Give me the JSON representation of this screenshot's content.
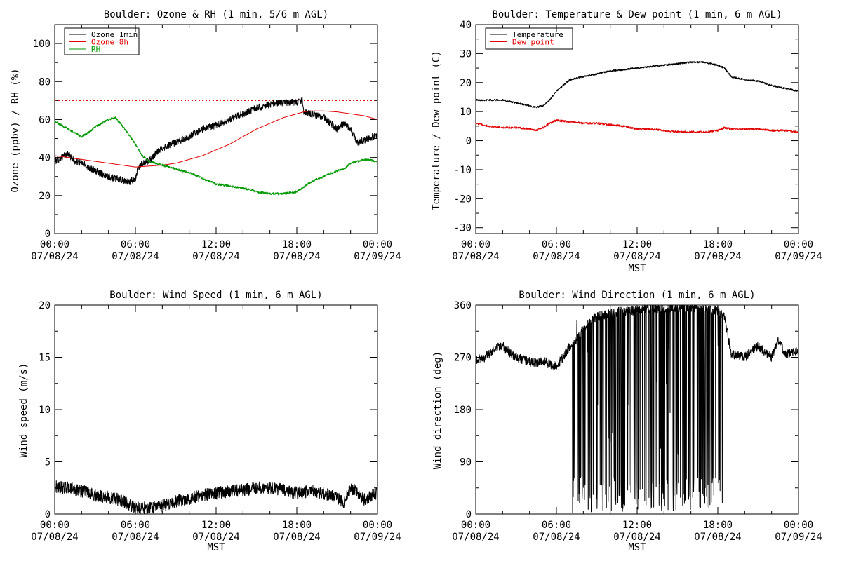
{
  "chart_data": [
    {
      "type": "line",
      "title": "Boulder: Ozone & RH (1 min, 5/6 m AGL)",
      "xlabel": "",
      "ylabel": "Ozone (ppbv) / RH (%)",
      "xlim": [
        0,
        24
      ],
      "ylim": [
        0,
        110
      ],
      "yticks": [
        0,
        20,
        40,
        60,
        80,
        100
      ],
      "xticks": [
        {
          "value": 0,
          "time": "00:00",
          "date": "07/08/24"
        },
        {
          "value": 6,
          "time": "06:00",
          "date": "07/08/24"
        },
        {
          "value": 12,
          "time": "12:00",
          "date": "07/08/24"
        },
        {
          "value": 18,
          "time": "18:00",
          "date": "07/08/24"
        },
        {
          "value": 24,
          "time": "00:00",
          "date": "07/09/24"
        }
      ],
      "legend_position": "top-left",
      "reference_line": {
        "y": 70,
        "color": "#e00000",
        "style": "dotted"
      },
      "series": [
        {
          "name": "Ozone 1min",
          "color": "#000000",
          "noise": 1.8,
          "x": [
            0,
            0.5,
            1,
            1.5,
            2,
            3,
            4,
            4.5,
            5,
            5.5,
            6,
            6.2,
            6.5,
            7,
            7.5,
            8,
            9,
            10,
            11,
            12,
            13,
            14,
            15,
            16,
            17,
            18,
            18.4,
            18.5,
            19,
            20,
            20.5,
            21,
            21.5,
            22,
            22.5,
            23,
            24
          ],
          "y": [
            38,
            40,
            42,
            38,
            37,
            33,
            30,
            29,
            28,
            27,
            29,
            34,
            37,
            38,
            42,
            45,
            48,
            51,
            55,
            57,
            60,
            63,
            66,
            68,
            69,
            69,
            70,
            64,
            63,
            61,
            58,
            55,
            58,
            55,
            48,
            49,
            52
          ]
        },
        {
          "name": "Ozone 8h",
          "color": "#e00000",
          "noise": 0,
          "x": [
            0,
            2,
            4,
            6,
            8,
            9,
            10,
            11,
            12,
            13,
            14,
            15,
            16,
            17,
            18,
            18.5,
            19,
            20,
            21,
            22,
            23,
            24
          ],
          "y": [
            41,
            39,
            37,
            35,
            36,
            37,
            39,
            41,
            44,
            47,
            51,
            55,
            58,
            61,
            63,
            64,
            64.5,
            64.5,
            64,
            63,
            62,
            60
          ]
        },
        {
          "name": "RH",
          "color": "#009900",
          "noise": 0.6,
          "x": [
            0,
            0.5,
            1,
            1.5,
            2,
            2.5,
            3,
            4,
            4.5,
            5,
            5.5,
            6,
            6.5,
            7,
            7.5,
            8,
            9,
            10,
            11,
            12,
            13,
            14,
            15,
            16,
            17,
            18,
            19,
            20,
            21,
            21.5,
            22,
            22.5,
            23,
            24
          ],
          "y": [
            59,
            57,
            55,
            53,
            51,
            53,
            56,
            60,
            61,
            57,
            52,
            47,
            41,
            38,
            37,
            36,
            34,
            32,
            29,
            26,
            25,
            24,
            22,
            21,
            21,
            22,
            27,
            30,
            33,
            34,
            37,
            38,
            39,
            38
          ]
        }
      ]
    },
    {
      "type": "line",
      "title": "Boulder: Temperature & Dew point (1 min, 6 m AGL)",
      "xlabel": "MST",
      "ylabel": "Temperature / Dew point (C)",
      "xlim": [
        0,
        24
      ],
      "ylim": [
        -32,
        40
      ],
      "yticks": [
        -30,
        -20,
        -10,
        0,
        10,
        20,
        30,
        40
      ],
      "xticks": [
        {
          "value": 0,
          "time": "00:00",
          "date": "07/08/24"
        },
        {
          "value": 6,
          "time": "06:00",
          "date": "07/08/24"
        },
        {
          "value": 12,
          "time": "12:00",
          "date": "07/08/24"
        },
        {
          "value": 18,
          "time": "18:00",
          "date": "07/08/24"
        },
        {
          "value": 24,
          "time": "00:00",
          "date": "07/09/24"
        }
      ],
      "legend_position": "top-left",
      "series": [
        {
          "name": "Temperature",
          "color": "#000000",
          "noise": 0.3,
          "x": [
            0,
            1,
            2,
            3,
            4,
            4.5,
            5,
            5.5,
            6,
            6.5,
            7,
            8,
            9,
            10,
            11,
            12,
            13,
            14,
            15,
            16,
            17,
            18,
            18.5,
            19,
            20,
            21,
            22,
            23,
            24
          ],
          "y": [
            14,
            14,
            14,
            13,
            12,
            11.5,
            12,
            14,
            17,
            19,
            21,
            22,
            23,
            24,
            24.5,
            25,
            25.5,
            26,
            26.5,
            27,
            27,
            26,
            25,
            22,
            21,
            20.5,
            19,
            18,
            17
          ]
        },
        {
          "name": "Dew point",
          "color": "#e00000",
          "noise": 0.35,
          "x": [
            0,
            1,
            2,
            3,
            4,
            4.5,
            5,
            5.5,
            6,
            7,
            8,
            9,
            10,
            11,
            12,
            13,
            14,
            15,
            16,
            17,
            18,
            18.5,
            19,
            20,
            21,
            22,
            23,
            24
          ],
          "y": [
            6,
            5,
            4.5,
            4.5,
            4,
            3.5,
            4.5,
            6,
            7,
            6.5,
            6,
            6,
            5.5,
            5,
            4,
            4,
            3.5,
            3,
            3,
            3,
            3.5,
            4.5,
            4,
            4,
            4,
            3.5,
            3.5,
            3
          ]
        }
      ]
    },
    {
      "type": "line",
      "title": "Boulder: Wind Speed (1 min, 6 m AGL)",
      "xlabel": "MST",
      "ylabel": "Wind speed (m/s)",
      "xlim": [
        0,
        24
      ],
      "ylim": [
        0,
        20
      ],
      "yticks": [
        0,
        5,
        10,
        15,
        20
      ],
      "xticks": [
        {
          "value": 0,
          "time": "00:00",
          "date": "07/08/24"
        },
        {
          "value": 6,
          "time": "06:00",
          "date": "07/08/24"
        },
        {
          "value": 12,
          "time": "12:00",
          "date": "07/08/24"
        },
        {
          "value": 18,
          "time": "18:00",
          "date": "07/08/24"
        },
        {
          "value": 24,
          "time": "00:00",
          "date": "07/09/24"
        }
      ],
      "series": [
        {
          "name": "",
          "color": "#000000",
          "noise": 0.6,
          "clamp_min": 0,
          "x": [
            0,
            1,
            2,
            3,
            4,
            5,
            5.5,
            6,
            7,
            8,
            9,
            10,
            11,
            12,
            13,
            14,
            15,
            16,
            17,
            18,
            19,
            20,
            21,
            21.5,
            22,
            23,
            24
          ],
          "y": [
            2.6,
            2.5,
            2.2,
            1.8,
            1.6,
            1.3,
            0.9,
            0.6,
            0.6,
            0.8,
            1.2,
            1.5,
            1.8,
            2.0,
            2.2,
            2.3,
            2.5,
            2.5,
            2.3,
            2.0,
            2.2,
            2.0,
            1.5,
            1.2,
            2.6,
            1.4,
            2.0
          ]
        }
      ]
    },
    {
      "type": "line",
      "title": "Boulder: Wind Direction (1 min, 6 m AGL)",
      "xlabel": "MST",
      "ylabel": "Wind direction (deg)",
      "xlim": [
        0,
        24
      ],
      "ylim": [
        0,
        360
      ],
      "yticks": [
        0,
        90,
        180,
        270,
        360
      ],
      "xticks": [
        {
          "value": 0,
          "time": "00:00",
          "date": "07/08/24"
        },
        {
          "value": 6,
          "time": "06:00",
          "date": "07/08/24"
        },
        {
          "value": 12,
          "time": "12:00",
          "date": "07/08/24"
        },
        {
          "value": 18,
          "time": "18:00",
          "date": "07/08/24"
        },
        {
          "value": 24,
          "time": "00:00",
          "date": "07/09/24"
        }
      ],
      "series": [
        {
          "name": "",
          "color": "#000000",
          "noise": 8,
          "wrap_range": [
            7.2,
            18.5
          ],
          "clamp_min": 0,
          "clamp_max": 360,
          "x": [
            0,
            0.5,
            1,
            1.5,
            2,
            2.5,
            3,
            4,
            4.5,
            5,
            5.5,
            6,
            6.5,
            7,
            7.5,
            8,
            9,
            10,
            11,
            12,
            13,
            14,
            15,
            16,
            17,
            18,
            18.5,
            19,
            20,
            20.5,
            21,
            22,
            22.5,
            23,
            24
          ],
          "y": [
            265,
            268,
            275,
            285,
            290,
            278,
            270,
            262,
            260,
            265,
            258,
            255,
            270,
            290,
            300,
            320,
            340,
            345,
            350,
            350,
            355,
            355,
            355,
            355,
            355,
            350,
            340,
            275,
            270,
            280,
            290,
            270,
            300,
            275,
            280
          ]
        }
      ]
    }
  ]
}
